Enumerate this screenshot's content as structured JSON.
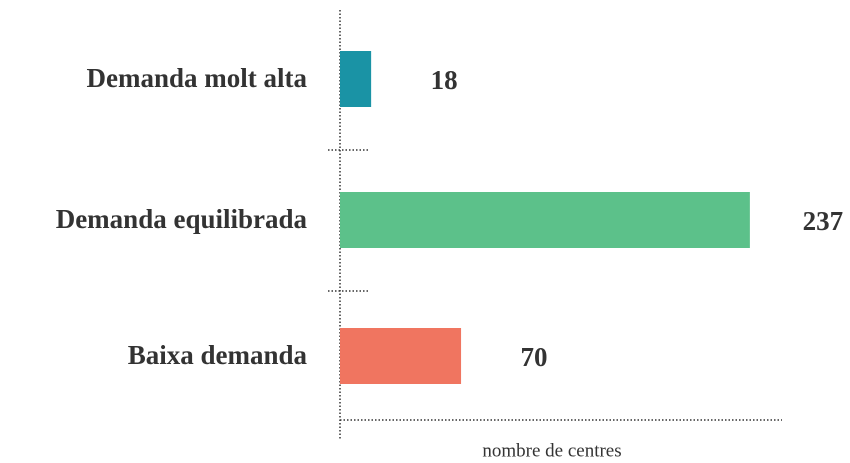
{
  "chart_data": {
    "type": "bar",
    "orientation": "horizontal",
    "categories": [
      "Demanda molt alta",
      "Demanda equilibrada",
      "Baixa demanda"
    ],
    "values": [
      18,
      237,
      70
    ],
    "colors": [
      "#1a93a5",
      "#5cc18a",
      "#f07560"
    ],
    "xlabel": "nombre de centres",
    "xlim": [
      0,
      255
    ]
  }
}
